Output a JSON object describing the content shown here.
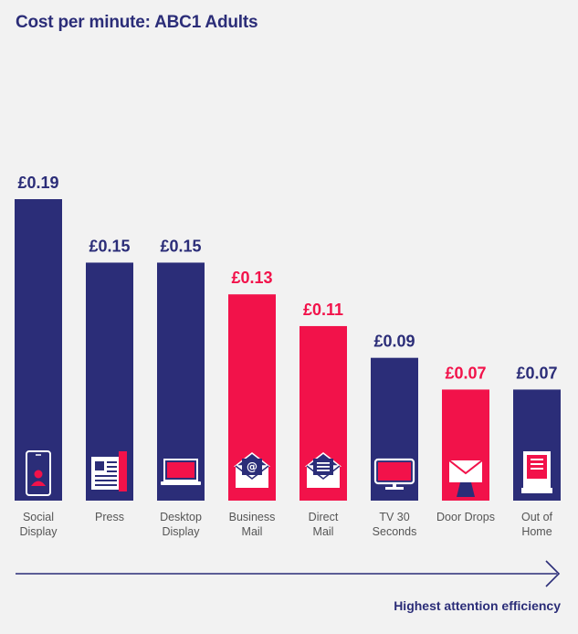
{
  "title": "Cost per minute: ABC1 Adults",
  "footer": "Highest attention efficiency",
  "colors": {
    "navy": "#2b2d78",
    "red": "#f2124a",
    "icon_white": "#ffffff"
  },
  "chart_data": {
    "type": "bar",
    "title": "Cost per minute: ABC1 Adults",
    "categories": [
      [
        "Social",
        "Display"
      ],
      [
        "Press"
      ],
      [
        "Desktop",
        "Display"
      ],
      [
        "Business",
        "Mail"
      ],
      [
        "Direct",
        "Mail"
      ],
      [
        "TV 30",
        "Seconds"
      ],
      [
        "Door Drops"
      ],
      [
        "Out of",
        "Home"
      ]
    ],
    "values": [
      0.19,
      0.15,
      0.15,
      0.13,
      0.11,
      0.09,
      0.07,
      0.07
    ],
    "value_labels": [
      "£0.19",
      "£0.15",
      "£0.15",
      "£0.13",
      "£0.11",
      "£0.09",
      "£0.07",
      "£0.07"
    ],
    "bar_colors": [
      "navy",
      "navy",
      "navy",
      "red",
      "red",
      "navy",
      "red",
      "navy"
    ],
    "icons": [
      "phone-icon",
      "newspaper-icon",
      "laptop-icon",
      "email-envelope-icon",
      "letter-envelope-icon",
      "tv-icon",
      "door-drop-envelope-icon",
      "billboard-icon"
    ],
    "grid": false,
    "legend": "none",
    "ylim": [
      0,
      0.19
    ]
  }
}
